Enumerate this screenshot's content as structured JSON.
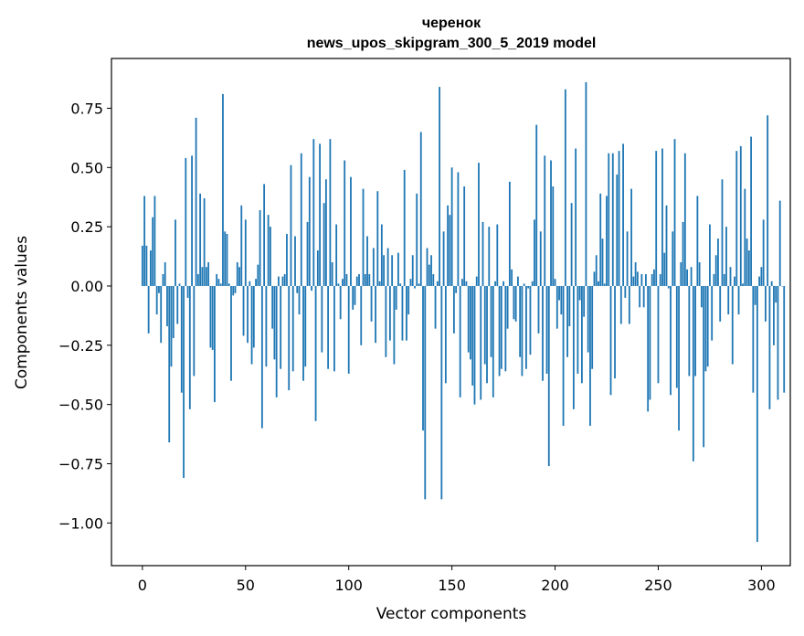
{
  "chart_data": {
    "type": "bar",
    "title_line1": "черенок",
    "title_line2": "news_upos_skipgram_300_5_2019 model",
    "xlabel": "Vector components",
    "ylabel": "Components values",
    "xlim": [
      -15,
      314
    ],
    "ylim": [
      -1.18,
      0.96
    ],
    "x_ticks": [
      0,
      50,
      100,
      150,
      200,
      250,
      300
    ],
    "x_tick_labels": [
      "0",
      "50",
      "100",
      "150",
      "200",
      "250",
      "300"
    ],
    "y_ticks": [
      0.75,
      0.5,
      0.25,
      0.0,
      -0.25,
      -0.5,
      -0.75,
      -1.0
    ],
    "y_tick_labels": [
      "0.75",
      "0.50",
      "0.25",
      "0.00",
      "−0.25",
      "−0.50",
      "−0.75",
      "−1.00"
    ],
    "bar_color": "#1f77b4",
    "values": [
      0.17,
      0.38,
      0.17,
      -0.2,
      0.15,
      0.29,
      0.38,
      -0.12,
      -0.03,
      -0.24,
      0.05,
      0.1,
      -0.17,
      -0.66,
      -0.34,
      -0.22,
      0.28,
      -0.16,
      0.01,
      -0.45,
      -0.81,
      0.54,
      -0.05,
      -0.52,
      0.55,
      -0.38,
      0.71,
      0.05,
      0.39,
      0.08,
      0.37,
      0.08,
      0.1,
      -0.26,
      -0.27,
      -0.49,
      0.05,
      0.03,
      0.01,
      0.81,
      0.23,
      0.22,
      0.01,
      -0.4,
      -0.04,
      -0.03,
      0.1,
      0.08,
      0.34,
      -0.21,
      0.28,
      -0.24,
      0.02,
      -0.33,
      -0.26,
      0.03,
      0.09,
      0.32,
      -0.6,
      0.43,
      -0.34,
      0.3,
      0.25,
      -0.18,
      -0.31,
      -0.47,
      0.04,
      -0.35,
      0.04,
      0.05,
      0.22,
      -0.44,
      0.51,
      -0.36,
      0.21,
      -0.03,
      -0.12,
      0.56,
      -0.4,
      -0.34,
      0.27,
      0.46,
      -0.02,
      0.62,
      -0.57,
      0.15,
      0.6,
      -0.28,
      0.35,
      0.45,
      -0.35,
      0.62,
      0.1,
      -0.36,
      0.26,
      0.01,
      -0.14,
      0.03,
      0.53,
      0.05,
      -0.37,
      0.46,
      -0.1,
      -0.08,
      0.04,
      0.05,
      -0.25,
      0.41,
      0.05,
      0.21,
      0.05,
      -0.15,
      0.16,
      -0.24,
      0.4,
      0.02,
      0.26,
      0.13,
      -0.3,
      0.16,
      -0.23,
      0.13,
      -0.33,
      -0.1,
      0.14,
      0.01,
      -0.23,
      0.49,
      -0.23,
      -0.12,
      0.03,
      0.13,
      -0.01,
      0.39,
      0.01,
      0.65,
      -0.61,
      -0.9,
      0.16,
      0.09,
      0.13,
      0.05,
      -0.18,
      0.02,
      0.84,
      -0.9,
      0.23,
      -0.41,
      0.34,
      0.3,
      0.5,
      -0.2,
      -0.03,
      0.48,
      -0.47,
      0.03,
      0.42,
      0.02,
      -0.28,
      -0.31,
      -0.42,
      -0.5,
      0.04,
      0.52,
      -0.48,
      0.27,
      -0.33,
      -0.41,
      0.25,
      -0.3,
      -0.47,
      0.02,
      0.26,
      -0.38,
      -0.35,
      0.02,
      -0.36,
      -0.18,
      0.44,
      0.07,
      -0.14,
      -0.15,
      0.04,
      -0.3,
      -0.38,
      0.01,
      -0.35,
      -0.01,
      -0.29,
      0.02,
      0.28,
      0.68,
      -0.2,
      0.23,
      -0.4,
      0.55,
      -0.37,
      -0.76,
      0.53,
      0.42,
      0.03,
      -0.18,
      -0.06,
      -0.12,
      -0.59,
      0.83,
      -0.3,
      -0.17,
      0.35,
      -0.52,
      0.58,
      -0.37,
      -0.06,
      -0.41,
      -0.13,
      0.86,
      -0.28,
      -0.59,
      -0.35,
      0.06,
      0.13,
      0.02,
      0.39,
      0.2,
      0.01,
      0.38,
      0.56,
      -0.46,
      0.56,
      -0.39,
      0.47,
      0.57,
      -0.16,
      0.6,
      -0.05,
      0.23,
      -0.16,
      0.41,
      0.04,
      0.1,
      0.06,
      -0.09,
      0.05,
      -0.09,
      0.05,
      -0.53,
      -0.48,
      0.05,
      0.07,
      0.57,
      -0.41,
      0.05,
      0.58,
      0.14,
      0.34,
      -0.01,
      -0.46,
      0.23,
      0.62,
      -0.43,
      -0.61,
      0.1,
      0.27,
      0.56,
      0.07,
      -0.38,
      0.08,
      -0.74,
      -0.38,
      0.38,
      0.1,
      -0.09,
      -0.68,
      -0.36,
      -0.34,
      0.26,
      -0.23,
      0.05,
      0.13,
      0.2,
      -0.15,
      0.45,
      0.05,
      0.25,
      -0.12,
      0.08,
      -0.33,
      0.04,
      0.57,
      -0.12,
      0.59,
      0.01,
      0.41,
      0.2,
      0.15,
      0.63,
      -0.45,
      -0.08,
      -1.08,
      0.04,
      0.08,
      0.28,
      -0.15,
      0.72,
      -0.52,
      0.02,
      -0.25,
      -0.07,
      -0.48,
      0.36,
      0.0,
      -0.45
    ]
  }
}
